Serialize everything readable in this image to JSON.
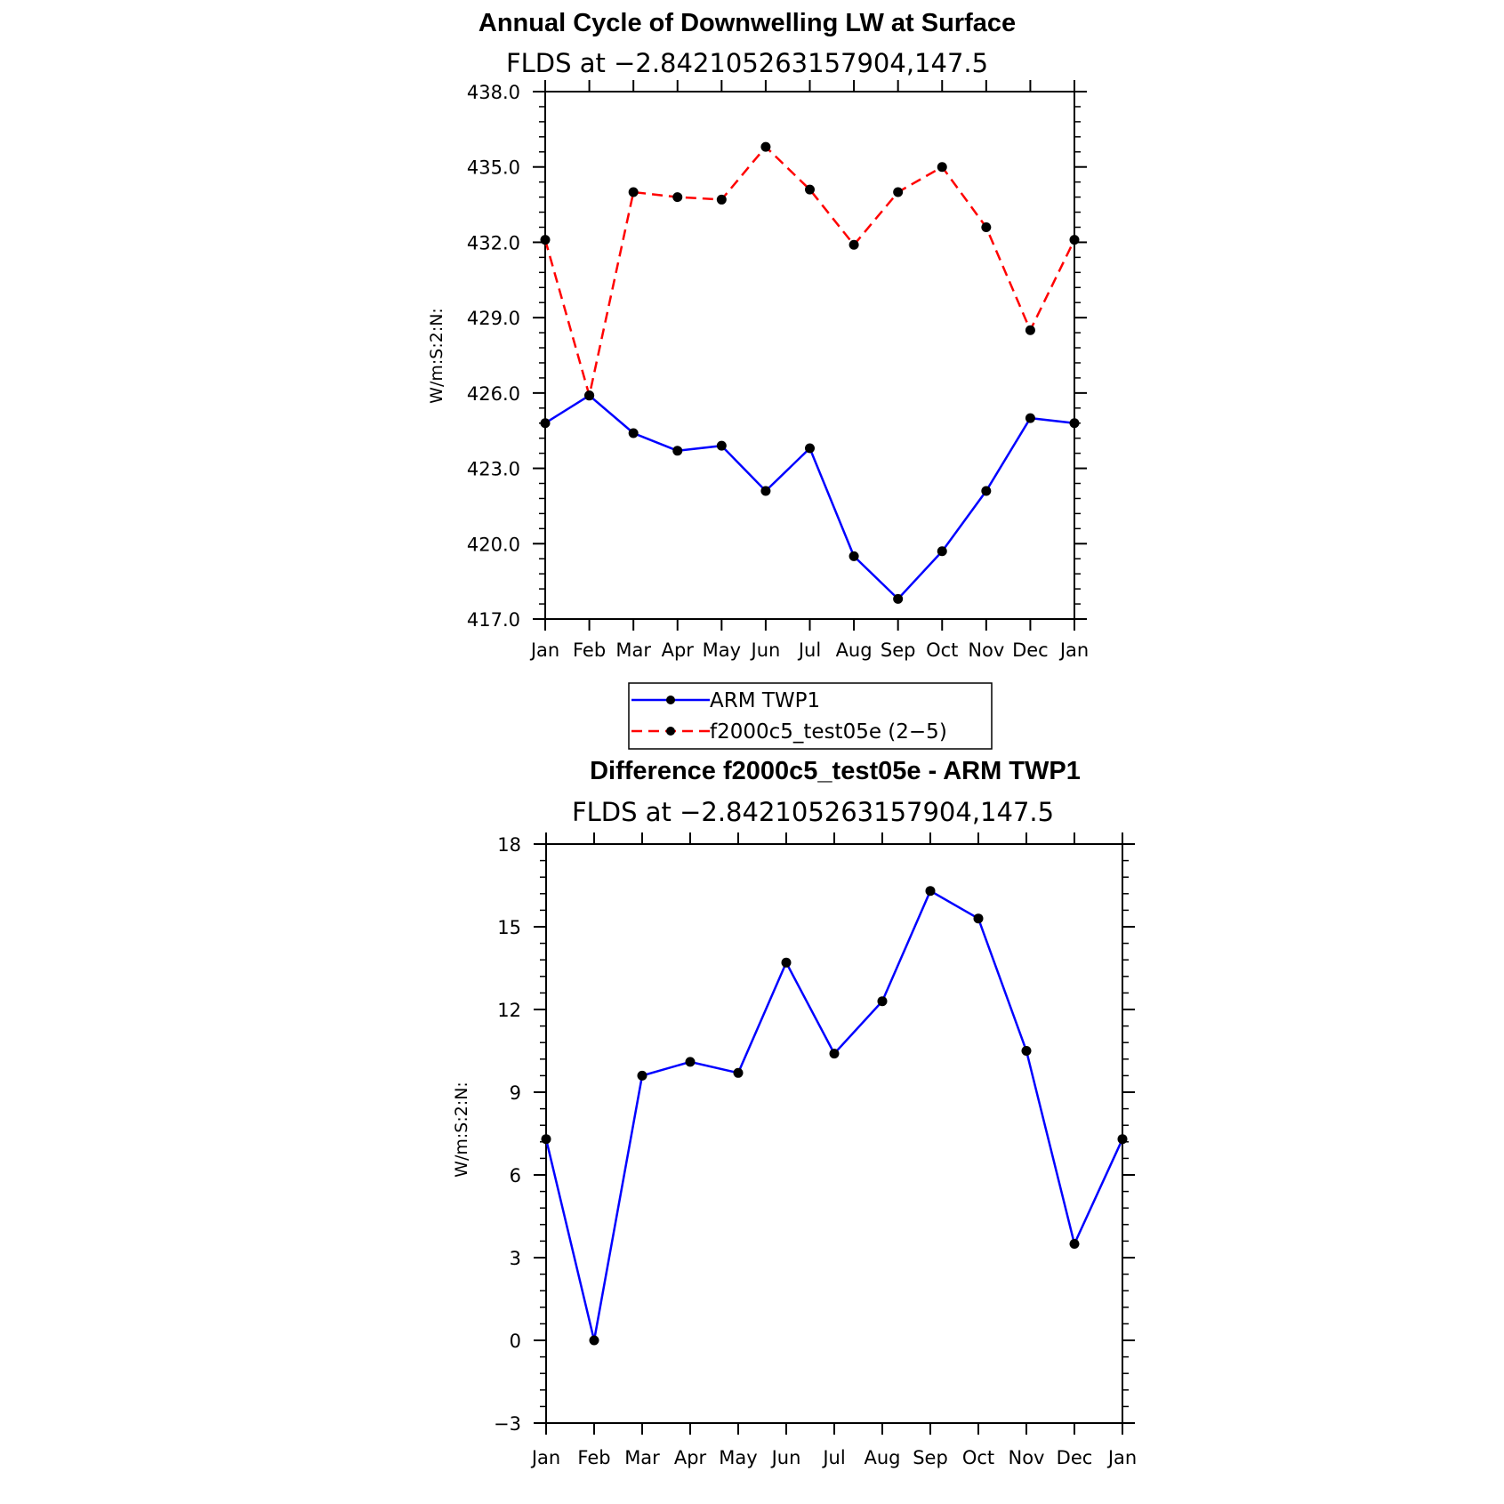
{
  "chart_data": [
    {
      "type": "line",
      "title": "Annual Cycle of Downwelling LW at Surface",
      "subtitle": "FLDS at −2.842105263157904,147.5",
      "ylabel": "W/m:S:2:N:",
      "categories": [
        "Jan",
        "Feb",
        "Mar",
        "Apr",
        "May",
        "Jun",
        "Jul",
        "Aug",
        "Sep",
        "Oct",
        "Nov",
        "Dec",
        "Jan"
      ],
      "ylim": [
        417,
        438
      ],
      "yticks": [
        "417.0",
        "420.0",
        "423.0",
        "426.0",
        "429.0",
        "432.0",
        "435.0",
        "438.0"
      ],
      "series": [
        {
          "name": "ARM  TWP1",
          "color": "#0000ff",
          "dash": "solid",
          "values": [
            424.8,
            425.9,
            424.4,
            423.7,
            423.9,
            422.1,
            423.8,
            419.5,
            417.8,
            419.7,
            422.1,
            425.0,
            424.8
          ]
        },
        {
          "name": "f2000c5_test05e  (2−5)",
          "color": "#ff0000",
          "dash": "dashed",
          "values": [
            432.1,
            425.9,
            434.0,
            433.8,
            433.7,
            435.8,
            434.1,
            431.9,
            434.0,
            435.0,
            432.6,
            428.5,
            432.1
          ]
        }
      ],
      "legend_position": "bottom"
    },
    {
      "type": "line",
      "title": "Difference f2000c5_test05e - ARM TWP1",
      "subtitle": "FLDS at −2.842105263157904,147.5",
      "ylabel": "W/m:S:2:N:",
      "categories": [
        "Jan",
        "Feb",
        "Mar",
        "Apr",
        "May",
        "Jun",
        "Jul",
        "Aug",
        "Sep",
        "Oct",
        "Nov",
        "Dec",
        "Jan"
      ],
      "ylim": [
        -3,
        18
      ],
      "yticks": [
        "−3",
        "0",
        "3",
        "6",
        "9",
        "12",
        "15",
        "18"
      ],
      "series": [
        {
          "color": "#0000ff",
          "dash": "solid",
          "values": [
            7.3,
            0.0,
            9.6,
            10.1,
            9.7,
            13.7,
            10.4,
            12.3,
            16.3,
            15.3,
            10.5,
            3.5,
            7.3
          ]
        }
      ]
    }
  ]
}
